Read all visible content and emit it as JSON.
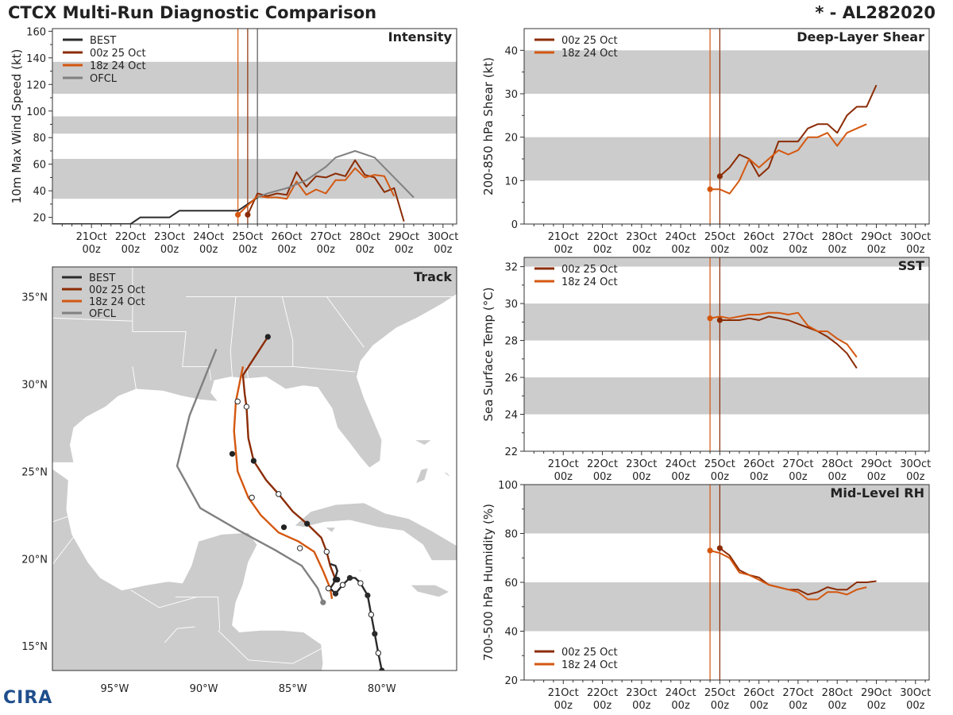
{
  "header": {
    "title": "CTCX Multi-Run Diagnostic Comparison",
    "storm_id": "* - AL282020"
  },
  "logo": {
    "text": "CIRA"
  },
  "colors": {
    "best": "#2b2b2b",
    "run_00z": "#8b2c05",
    "run_18z": "#d4570f",
    "ofcl": "#808080",
    "band": "#cccccc"
  },
  "time_axis": {
    "ticks": [
      {
        "day": "21Oct",
        "hour": "00z"
      },
      {
        "day": "22Oct",
        "hour": "00z"
      },
      {
        "day": "23Oct",
        "hour": "00z"
      },
      {
        "day": "24Oct",
        "hour": "00z"
      },
      {
        "day": "25Oct",
        "hour": "00z"
      },
      {
        "day": "26Oct",
        "hour": "00z"
      },
      {
        "day": "27Oct",
        "hour": "00z"
      },
      {
        "day": "28Oct",
        "hour": "00z"
      },
      {
        "day": "29Oct",
        "hour": "00z"
      },
      {
        "day": "30Oct",
        "hour": "00z"
      }
    ],
    "xlim_days": [
      20.0,
      30.35
    ],
    "init_times_days": [
      24.75,
      25.0
    ],
    "ofcl_init_days": 25.25
  },
  "chart_data": [
    {
      "id": "intensity",
      "type": "line",
      "title": "Intensity",
      "ylabel": "10m Max Wind Speed (kt)",
      "ylim": [
        15,
        162
      ],
      "yticks": [
        20,
        40,
        60,
        80,
        100,
        120,
        140,
        160
      ],
      "bands": [
        [
          34,
          64
        ],
        [
          83,
          96
        ],
        [
          113,
          137
        ]
      ],
      "legend": [
        "BEST",
        "00z 25 Oct",
        "18z 24 Oct",
        "OFCL"
      ],
      "series": [
        {
          "name": "BEST",
          "color": "#2b2b2b",
          "x": [
            20,
            20.25,
            20.5,
            20.75,
            21,
            21.25,
            21.5,
            21.75,
            22,
            22.25,
            22.5,
            22.75,
            23,
            23.25,
            23.5,
            23.75,
            24,
            24.25,
            24.5,
            24.75,
            25,
            25.25
          ],
          "y": [
            15,
            15,
            15,
            15,
            15,
            15,
            15,
            15,
            15,
            20,
            20,
            20,
            20,
            25,
            25,
            25,
            25,
            25,
            25,
            25,
            30,
            35
          ]
        },
        {
          "name": "00z 25 Oct",
          "color": "#8b2c05",
          "x": [
            25.0,
            25.25,
            25.5,
            25.75,
            26.0,
            26.25,
            26.5,
            26.75,
            27.0,
            27.25,
            27.5,
            27.75,
            28.0,
            28.25,
            28.5,
            28.75,
            29.0
          ],
          "y": [
            22,
            38,
            36,
            38,
            37,
            54,
            43,
            51,
            50,
            53,
            51,
            63,
            52,
            50,
            39,
            42,
            17
          ],
          "marker_x": [
            25.0
          ]
        },
        {
          "name": "18z 24 Oct",
          "color": "#d4570f",
          "x": [
            24.75,
            25.0,
            25.25,
            25.5,
            25.75,
            26.0,
            26.25,
            26.5,
            26.75,
            27.0,
            27.25,
            27.5,
            27.75,
            28.0,
            28.25,
            28.5,
            28.75
          ],
          "y": [
            22,
            29,
            36,
            35,
            35,
            34,
            47,
            37,
            41,
            38,
            48,
            48,
            57,
            50,
            52,
            51,
            36
          ],
          "marker_x": [
            24.75
          ]
        },
        {
          "name": "OFCL",
          "color": "#808080",
          "x": [
            25.25,
            25.5,
            26.0,
            26.5,
            27.0,
            27.25,
            27.75,
            28.25,
            29.25
          ],
          "y": [
            35,
            38,
            42,
            48,
            58,
            65,
            70,
            65,
            35
          ]
        }
      ]
    },
    {
      "id": "shear",
      "type": "line",
      "title": "Deep-Layer Shear",
      "ylabel": "200-850 hPa Shear (kt)",
      "ylim": [
        0,
        45
      ],
      "yticks": [
        0,
        10,
        20,
        30,
        40
      ],
      "bands": [
        [
          10,
          20
        ],
        [
          30,
          40
        ]
      ],
      "legend": [
        "00z 25 Oct",
        "18z 24 Oct"
      ],
      "series": [
        {
          "name": "00z 25 Oct",
          "color": "#8b2c05",
          "x": [
            25.0,
            25.25,
            25.5,
            25.75,
            26.0,
            26.25,
            26.5,
            26.75,
            27.0,
            27.25,
            27.5,
            27.75,
            28.0,
            28.25,
            28.5,
            28.75,
            29.0
          ],
          "y": [
            11,
            13,
            16,
            15,
            11,
            13,
            19,
            19,
            19,
            22,
            23,
            23,
            21,
            25,
            27,
            27,
            32
          ],
          "marker_x": [
            25.0
          ]
        },
        {
          "name": "18z 24 Oct",
          "color": "#d4570f",
          "x": [
            24.75,
            25.0,
            25.25,
            25.5,
            25.75,
            26.0,
            26.25,
            26.5,
            26.75,
            27.0,
            27.25,
            27.5,
            27.75,
            28.0,
            28.25,
            28.5,
            28.75
          ],
          "y": [
            8,
            8,
            7,
            10,
            15,
            13,
            15,
            17,
            16,
            17,
            20,
            20,
            21,
            18,
            21,
            22,
            23
          ],
          "marker_x": [
            24.75
          ]
        }
      ]
    },
    {
      "id": "sst",
      "type": "line",
      "title": "SST",
      "ylabel": "Sea Surface Temp (°C)",
      "ylim": [
        22,
        32.5
      ],
      "yticks": [
        22,
        24,
        26,
        28,
        30,
        32
      ],
      "bands": [
        [
          24,
          26
        ],
        [
          28,
          30
        ],
        [
          32,
          32.5
        ]
      ],
      "legend": [
        "00z 25 Oct",
        "18z 24 Oct"
      ],
      "series": [
        {
          "name": "00z 25 Oct",
          "color": "#8b2c05",
          "x": [
            25.0,
            25.25,
            25.5,
            25.75,
            26.0,
            26.25,
            26.5,
            26.75,
            27.0,
            27.25,
            27.5,
            27.75,
            28.0,
            28.25,
            28.5
          ],
          "y": [
            29.1,
            29.1,
            29.1,
            29.2,
            29.1,
            29.3,
            29.2,
            29.1,
            28.9,
            28.7,
            28.5,
            28.2,
            27.8,
            27.3,
            26.5
          ],
          "marker_x": [
            25.0
          ]
        },
        {
          "name": "18z 24 Oct",
          "color": "#d4570f",
          "x": [
            24.75,
            25.0,
            25.25,
            25.5,
            25.75,
            26.0,
            26.25,
            26.5,
            26.75,
            27.0,
            27.25,
            27.5,
            27.75,
            28.0,
            28.25,
            28.5
          ],
          "y": [
            29.2,
            29.3,
            29.2,
            29.3,
            29.4,
            29.4,
            29.5,
            29.5,
            29.4,
            29.5,
            28.8,
            28.5,
            28.5,
            28.1,
            27.8,
            27.1
          ],
          "marker_x": [
            24.75
          ]
        }
      ]
    },
    {
      "id": "rh",
      "type": "line",
      "title": "Mid-Level RH",
      "ylabel": "700-500 hPa Humidity (%)",
      "ylim": [
        20,
        100
      ],
      "yticks": [
        20,
        40,
        60,
        80,
        100
      ],
      "bands": [
        [
          40,
          60
        ],
        [
          80,
          100
        ]
      ],
      "legend": [
        "00z 25 Oct",
        "18z 24 Oct"
      ],
      "legend_position": "bottom-left",
      "series": [
        {
          "name": "00z 25 Oct",
          "color": "#8b2c05",
          "x": [
            25.0,
            25.25,
            25.5,
            25.75,
            26.0,
            26.25,
            26.5,
            26.75,
            27.0,
            27.25,
            27.5,
            27.75,
            28.0,
            28.25,
            28.5,
            28.75,
            29.0
          ],
          "y": [
            74,
            71,
            65,
            63,
            62,
            59,
            58,
            57,
            57,
            55,
            56,
            58,
            57,
            57,
            60,
            60,
            60.5
          ],
          "marker_x": [
            25.0
          ]
        },
        {
          "name": "18z 24 Oct",
          "color": "#d4570f",
          "x": [
            24.75,
            25.0,
            25.25,
            25.5,
            25.75,
            26.0,
            26.25,
            26.5,
            26.75,
            27.0,
            27.25,
            27.5,
            27.75,
            28.0,
            28.25,
            28.5,
            28.75
          ],
          "y": [
            73,
            72,
            70,
            64,
            63,
            61,
            59,
            58,
            57,
            56,
            53,
            53,
            56,
            56,
            55,
            57,
            58
          ],
          "marker_x": [
            24.75
          ]
        }
      ]
    },
    {
      "id": "track",
      "type": "line",
      "title": "Track",
      "xlim_lon": [
        -98.5,
        -75.8
      ],
      "ylim_lat": [
        13.6,
        36.7
      ],
      "lon_ticks": [
        {
          "value": -95,
          "label": "95°W"
        },
        {
          "value": -90,
          "label": "90°W"
        },
        {
          "value": -85,
          "label": "85°W"
        },
        {
          "value": -80,
          "label": "80°W"
        }
      ],
      "lat_ticks": [
        {
          "value": 15,
          "label": "15°N"
        },
        {
          "value": 20,
          "label": "20°N"
        },
        {
          "value": 25,
          "label": "25°N"
        },
        {
          "value": 30,
          "label": "30°N"
        },
        {
          "value": 35,
          "label": "35°N"
        }
      ],
      "legend": [
        "BEST",
        "00z 25 Oct",
        "18z 24 Oct",
        "OFCL"
      ],
      "series": [
        {
          "name": "BEST",
          "color": "#2b2b2b",
          "lon": [
            -80.0,
            -80.2,
            -80.4,
            -80.6,
            -80.8,
            -81.2,
            -81.5,
            -81.8,
            -82.2,
            -82.6,
            -82.9,
            -82.7,
            -82.5,
            -82.6,
            -82.9
          ],
          "lat": [
            13.6,
            14.6,
            15.7,
            16.8,
            17.9,
            18.6,
            18.9,
            18.9,
            18.5,
            18.0,
            18.3,
            18.6,
            19.3,
            19.6,
            19.7
          ],
          "dots": [
            [
              -80.0,
              13.6,
              1
            ],
            [
              -80.2,
              14.6,
              0
            ],
            [
              -80.4,
              15.7,
              1
            ],
            [
              -80.6,
              16.8,
              0
            ],
            [
              -80.8,
              17.9,
              1
            ],
            [
              -81.2,
              18.6,
              0
            ],
            [
              -81.8,
              18.9,
              1
            ],
            [
              -82.2,
              18.5,
              0
            ],
            [
              -82.6,
              18.0,
              1
            ]
          ]
        },
        {
          "name": "00z 25 Oct",
          "color": "#8b2c05",
          "lon": [
            -82.6,
            -82.9,
            -83.1,
            -83.4,
            -84.2,
            -85.0,
            -85.8,
            -86.5,
            -87.2,
            -87.5,
            -87.6,
            -87.7,
            -87.8,
            -86.4
          ],
          "lat": [
            18.8,
            19.6,
            20.4,
            21.2,
            22.0,
            22.7,
            23.7,
            24.5,
            25.6,
            26.9,
            28.7,
            29.4,
            30.5,
            32.7
          ],
          "dots": [
            [
              -82.6,
              18.8,
              1
            ],
            [
              -83.1,
              20.4,
              0
            ],
            [
              -84.2,
              22.0,
              1
            ],
            [
              -85.8,
              23.7,
              0
            ],
            [
              -87.2,
              25.6,
              1
            ],
            [
              -87.6,
              28.7,
              0
            ],
            [
              -86.4,
              32.7,
              1
            ]
          ]
        },
        {
          "name": "18z 24 Oct",
          "color": "#d4570f",
          "lon": [
            -82.8,
            -82.9,
            -83.3,
            -83.8,
            -84.7,
            -85.8,
            -86.8,
            -87.5,
            -88.1,
            -88.3,
            -88.2,
            -87.8
          ],
          "lat": [
            17.7,
            18.3,
            19.3,
            20.4,
            21.0,
            21.5,
            22.5,
            23.5,
            25.0,
            27.3,
            29.0,
            31.0
          ],
          "dots": [
            [
              -82.5,
              18.8,
              1
            ],
            [
              -83.0,
              18.3,
              0
            ],
            [
              -84.6,
              20.6,
              0
            ],
            [
              -85.5,
              21.8,
              1
            ],
            [
              -87.3,
              23.5,
              0
            ],
            [
              -88.4,
              26.0,
              1
            ],
            [
              -88.1,
              29.0,
              0
            ]
          ]
        },
        {
          "name": "OFCL",
          "color": "#808080",
          "lon": [
            -83.3,
            -83.6,
            -84.5,
            -86.0,
            -88.0,
            -90.2,
            -91.5,
            -90.8,
            -89.3
          ],
          "lat": [
            17.5,
            18.3,
            19.6,
            20.5,
            21.6,
            22.9,
            25.3,
            28.2,
            32.0
          ],
          "dots": [
            [
              -83.3,
              17.5,
              1
            ]
          ]
        }
      ]
    }
  ]
}
